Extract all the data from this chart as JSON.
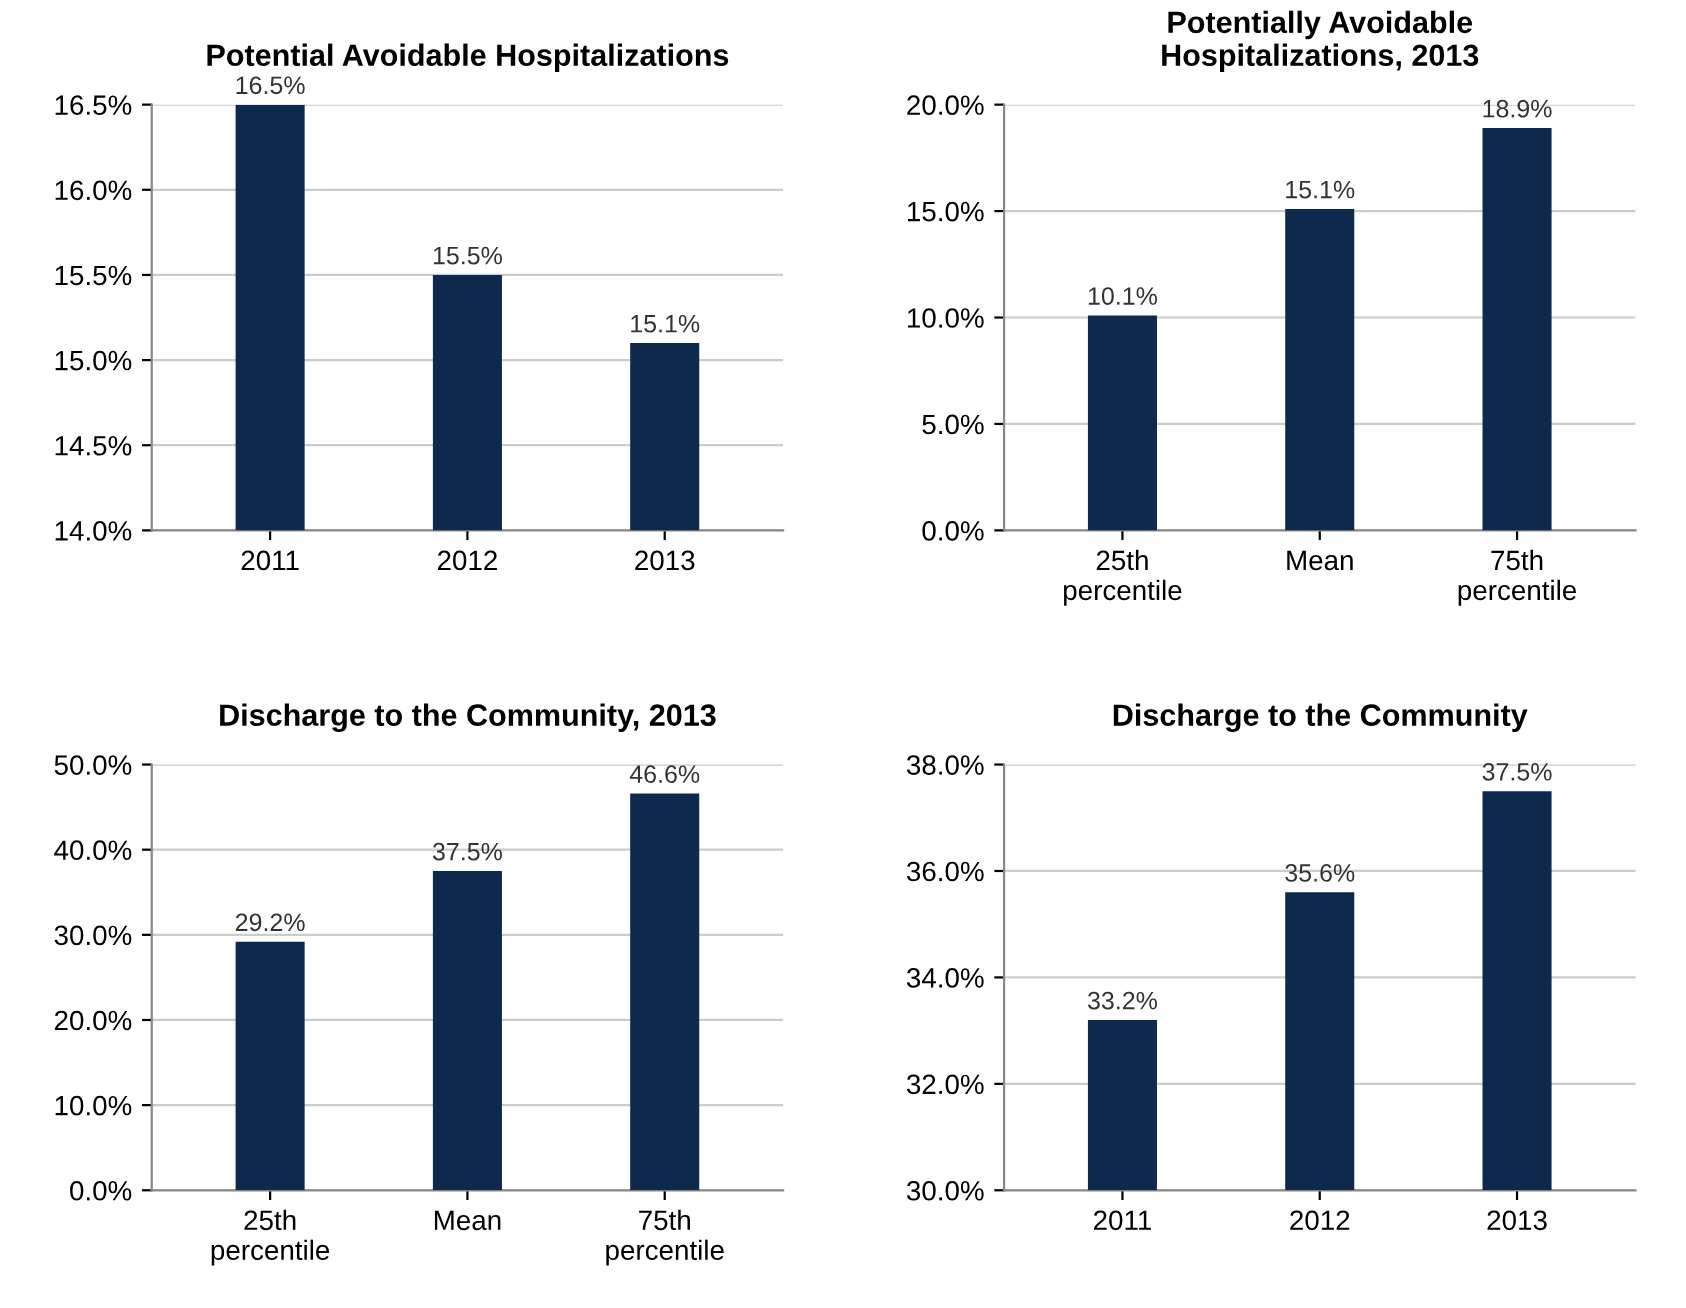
{
  "chart_data": [
    {
      "type": "bar",
      "title": "Potential Avoidable Hospitalizations",
      "categories": [
        "2011",
        "2012",
        "2013"
      ],
      "values": [
        16.5,
        15.5,
        15.1
      ],
      "value_labels": [
        "16.5%",
        "15.5%",
        "15.1%"
      ],
      "color": "#0d2a4c",
      "ylim": [
        14,
        16.5
      ],
      "yticks": [
        {
          "value": 14,
          "label": "14.0%"
        },
        {
          "value": 14.5,
          "label": "14.5%"
        },
        {
          "value": 15,
          "label": "15.0%"
        },
        {
          "value": 15.5,
          "label": "15.5%"
        },
        {
          "value": 16,
          "label": "16.0%"
        },
        {
          "value": 16.5,
          "label": "16.5%"
        }
      ],
      "grid": "y"
    },
    {
      "type": "bar",
      "title": "Potentially Avoidable\nHospitalizations, 2013",
      "categories": [
        "25th\npercentile",
        "Mean",
        "75th\npercentile"
      ],
      "values": [
        10.1,
        15.1,
        18.9
      ],
      "value_labels": [
        "10.1%",
        "15.1%",
        "18.9%"
      ],
      "color": "#0d2a4c",
      "ylim": [
        0,
        20
      ],
      "yticks": [
        {
          "value": 0,
          "label": "0.0%"
        },
        {
          "value": 5,
          "label": "5.0%"
        },
        {
          "value": 10,
          "label": "10.0%"
        },
        {
          "value": 15,
          "label": "15.0%"
        },
        {
          "value": 20,
          "label": "20.0%"
        }
      ],
      "grid": "y"
    },
    {
      "type": "bar",
      "title": "Discharge to the Community, 2013",
      "categories": [
        "25th\npercentile",
        "Mean",
        "75th\npercentile"
      ],
      "values": [
        29.2,
        37.5,
        46.6
      ],
      "value_labels": [
        "29.2%",
        "37.5%",
        "46.6%"
      ],
      "color": "#0d2a4c",
      "ylim": [
        0,
        50
      ],
      "yticks": [
        {
          "value": 0,
          "label": "0.0%"
        },
        {
          "value": 10,
          "label": "10.0%"
        },
        {
          "value": 20,
          "label": "20.0%"
        },
        {
          "value": 30,
          "label": "30.0%"
        },
        {
          "value": 40,
          "label": "40.0%"
        },
        {
          "value": 50,
          "label": "50.0%"
        }
      ],
      "grid": "y"
    },
    {
      "type": "bar",
      "title": "Discharge to the Community",
      "categories": [
        "2011",
        "2012",
        "2013"
      ],
      "values": [
        33.2,
        35.6,
        37.5
      ],
      "value_labels": [
        "33.2%",
        "35.6%",
        "37.5%"
      ],
      "color": "#0d2a4c",
      "ylim": [
        30,
        38
      ],
      "yticks": [
        {
          "value": 30,
          "label": "30.0%"
        },
        {
          "value": 32,
          "label": "32.0%"
        },
        {
          "value": 34,
          "label": "34.0%"
        },
        {
          "value": 36,
          "label": "36.0%"
        },
        {
          "value": 38,
          "label": "38.0%"
        }
      ],
      "grid": "y"
    }
  ]
}
